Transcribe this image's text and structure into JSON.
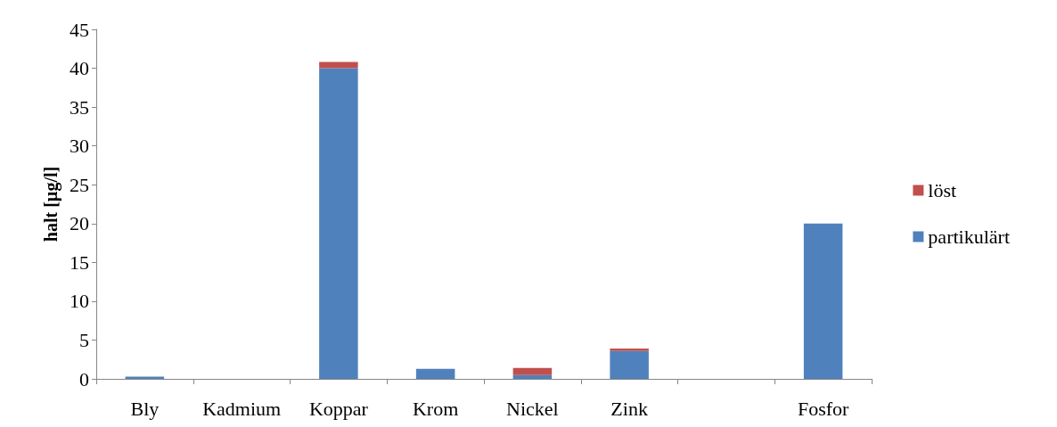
{
  "chart_data": {
    "type": "bar",
    "stacked": true,
    "ylabel": "halt [µg/l]",
    "categories": [
      "Bly",
      "Kadmium",
      "Koppar",
      "Krom",
      "Nickel",
      "Zink",
      null,
      "Fosfor"
    ],
    "series": [
      {
        "name": "partikulärt",
        "color": "#4f81bd",
        "values": [
          0.3,
          0,
          40,
          1.3,
          0.5,
          3.6,
          0,
          20
        ]
      },
      {
        "name": "löst",
        "color": "#c0504d",
        "values": [
          0,
          0,
          0.8,
          0,
          0.9,
          0.3,
          0,
          0
        ]
      }
    ],
    "ylim": [
      0,
      45
    ],
    "yticks": [
      0,
      5,
      10,
      15,
      20,
      25,
      30,
      35,
      40,
      45
    ],
    "grid": false,
    "legend": "right"
  }
}
